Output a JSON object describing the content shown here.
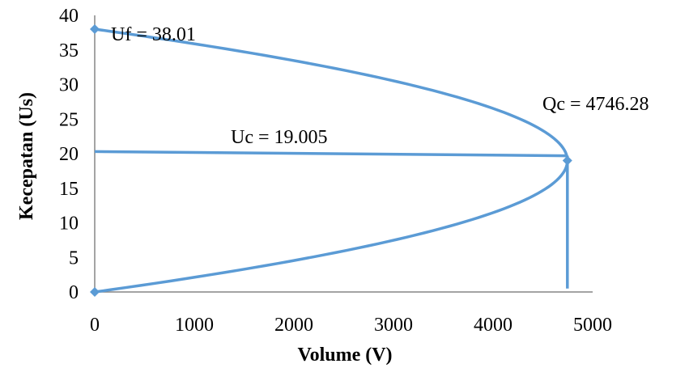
{
  "chart_data": {
    "type": "line",
    "title": "",
    "xlabel": "Volume (V)",
    "ylabel": "Kecepatan (Us)",
    "xlim": [
      0,
      5000
    ],
    "ylim": [
      0,
      40
    ],
    "x_ticks": [
      0,
      1000,
      2000,
      3000,
      4000,
      5000
    ],
    "y_ticks": [
      0,
      5,
      10,
      15,
      20,
      25,
      30,
      35,
      40
    ],
    "grid": false,
    "legend": "none",
    "color": "#5B9BD5",
    "free_flow_speed": 38.01,
    "critical_speed": 19.005,
    "capacity": 4746.28,
    "points": [
      {
        "x": 0,
        "y": 38.01
      },
      {
        "x": 4746.28,
        "y": 19.005
      },
      {
        "x": 0,
        "y": 0
      }
    ],
    "series": [
      {
        "type": "curve",
        "relation": "V = 4746.28 * (4*Us/38.01 - 4*Us^2/38.01^2)"
      },
      {
        "type": "line",
        "values": [
          {
            "x": 0,
            "y": 20.3
          },
          {
            "x": 4746.28,
            "y": 19.7
          }
        ]
      },
      {
        "type": "line",
        "values": [
          {
            "x": 4746.28,
            "y": 19.7
          },
          {
            "x": 4746.28,
            "y": 0.5
          }
        ]
      }
    ],
    "annotations": [
      {
        "text": "Uf = 38.01"
      },
      {
        "text": "Uc = 19.005"
      },
      {
        "text": "Qc = 4746.28"
      }
    ]
  }
}
